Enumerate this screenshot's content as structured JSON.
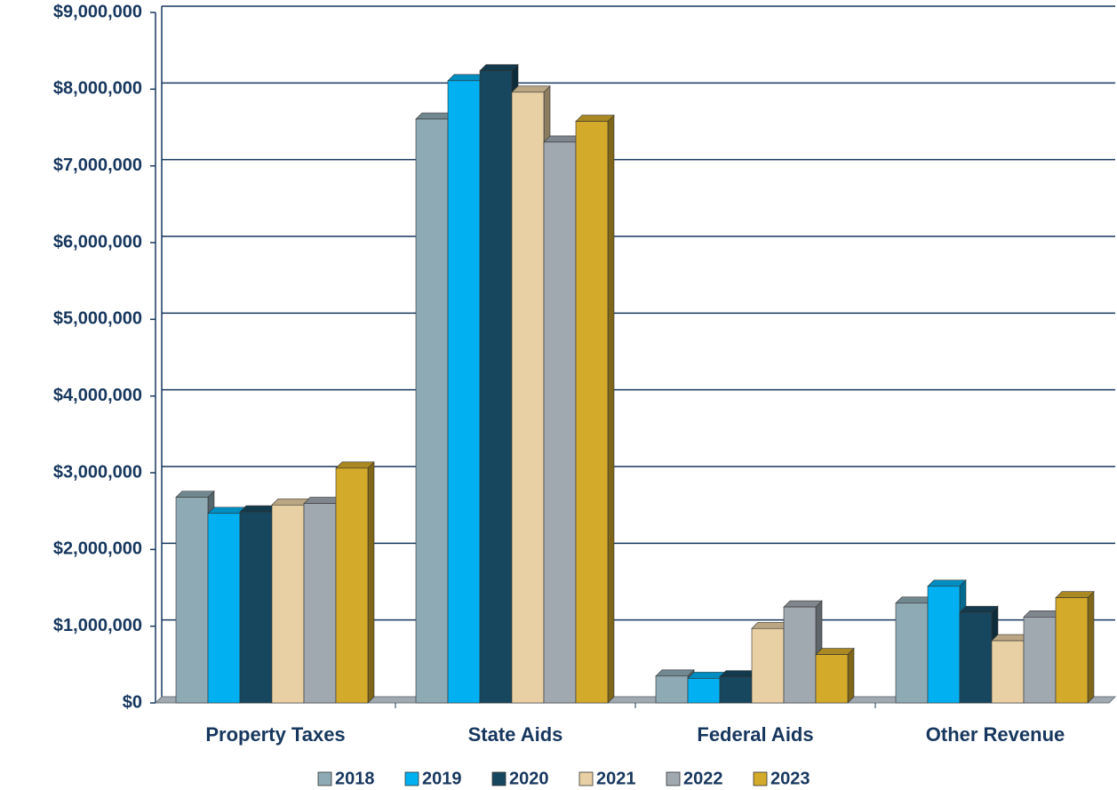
{
  "chart_data": {
    "type": "bar3d",
    "categories": [
      "Property Taxes",
      "State Aids",
      "Federal Aids",
      "Other Revenue"
    ],
    "series": [
      {
        "name": "2018",
        "color": "#8eaab4",
        "values": [
          2680000,
          7610000,
          350000,
          1300000
        ]
      },
      {
        "name": "2019",
        "color": "#00b0f0",
        "values": [
          2470000,
          8110000,
          320000,
          1520000
        ]
      },
      {
        "name": "2020",
        "color": "#17475f",
        "values": [
          2490000,
          8240000,
          340000,
          1180000
        ]
      },
      {
        "name": "2021",
        "color": "#e8d0a4",
        "values": [
          2580000,
          7960000,
          970000,
          810000
        ]
      },
      {
        "name": "2022",
        "color": "#a0a8b0",
        "values": [
          2600000,
          7310000,
          1250000,
          1120000
        ]
      },
      {
        "name": "2023",
        "color": "#d4aa2a",
        "values": [
          3060000,
          7580000,
          630000,
          1370000
        ]
      }
    ],
    "ylim": [
      0,
      9000000
    ],
    "yticks": [
      {
        "value": 0,
        "label": "$0"
      },
      {
        "value": 1000000,
        "label": "$1,000,000"
      },
      {
        "value": 2000000,
        "label": "$2,000,000"
      },
      {
        "value": 3000000,
        "label": "$3,000,000"
      },
      {
        "value": 4000000,
        "label": "$4,000,000"
      },
      {
        "value": 5000000,
        "label": "$5,000,000"
      },
      {
        "value": 6000000,
        "label": "$6,000,000"
      },
      {
        "value": 7000000,
        "label": "$7,000,000"
      },
      {
        "value": 8000000,
        "label": "$8,000,000"
      },
      {
        "value": 9000000,
        "label": "$9,000,000"
      }
    ],
    "grid": true,
    "legend": "bottom"
  }
}
